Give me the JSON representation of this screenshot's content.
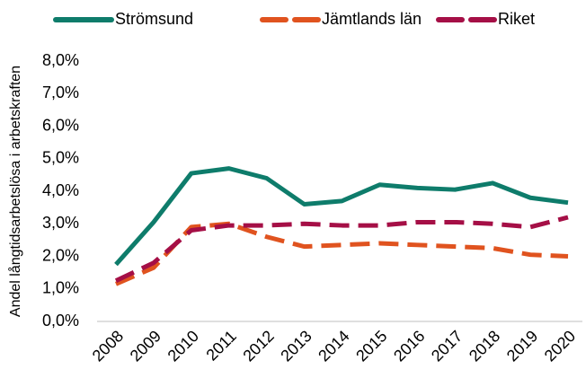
{
  "chart_data": {
    "type": "line",
    "y_label": "Andel långtidsarbetslösa i arbetskraften",
    "categories": [
      "2008",
      "2009",
      "2010",
      "2011",
      "2012",
      "2013",
      "2014",
      "2015",
      "2016",
      "2017",
      "2018",
      "2019",
      "2020"
    ],
    "series": [
      {
        "name": "Strömsund",
        "color": "#0e7c6b",
        "dashed": false,
        "values": [
          1.75,
          3.05,
          4.55,
          4.7,
          4.4,
          3.6,
          3.7,
          4.2,
          4.1,
          4.05,
          4.25,
          3.8,
          3.65
        ]
      },
      {
        "name": "Jämtlands län",
        "color": "#e0531f",
        "dashed": true,
        "values": [
          1.15,
          1.65,
          2.9,
          3.0,
          2.6,
          2.3,
          2.35,
          2.4,
          2.35,
          2.3,
          2.25,
          2.05,
          2.0
        ]
      },
      {
        "name": "Riket",
        "color": "#a50f46",
        "dashed": true,
        "values": [
          1.25,
          1.8,
          2.8,
          2.95,
          2.95,
          3.0,
          2.95,
          2.95,
          3.05,
          3.05,
          3.0,
          2.9,
          3.2
        ]
      }
    ],
    "ylim": [
      0,
      8
    ],
    "yticks": [
      {
        "value": 0,
        "label": "0,0%"
      },
      {
        "value": 1,
        "label": "1,0%"
      },
      {
        "value": 2,
        "label": "2,0%"
      },
      {
        "value": 3,
        "label": "3,0%"
      },
      {
        "value": 4,
        "label": "4,0%"
      },
      {
        "value": 5,
        "label": "5,0%"
      },
      {
        "value": 6,
        "label": "6,0%"
      },
      {
        "value": 7,
        "label": "7,0%"
      },
      {
        "value": 8,
        "label": "8,0%"
      }
    ],
    "legend": "top"
  }
}
